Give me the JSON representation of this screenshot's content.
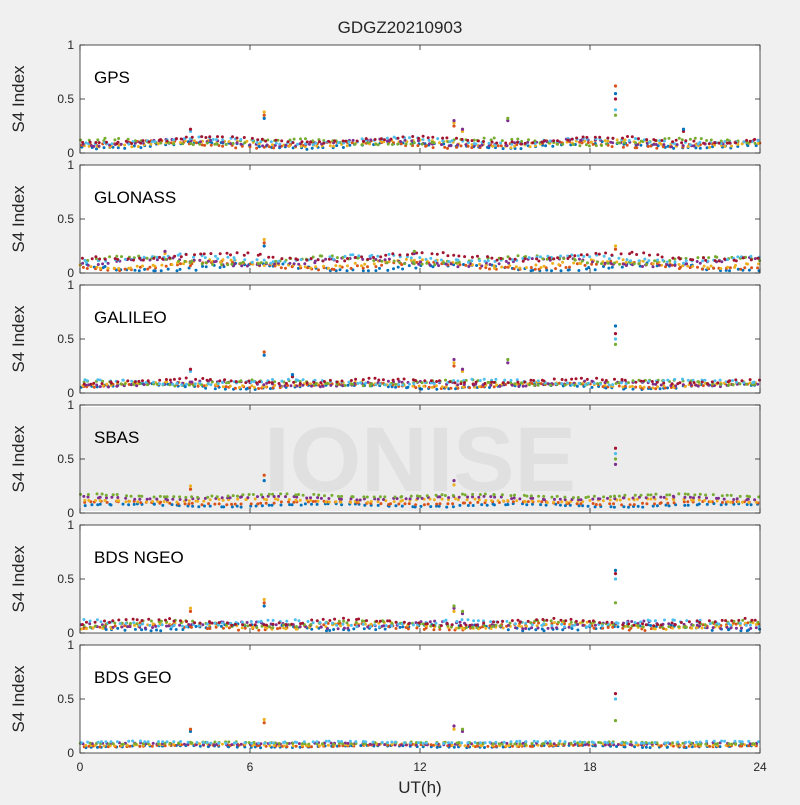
{
  "figure": {
    "title": "GDGZ20210903",
    "watermark": "IONISE",
    "xlabel": "UT(h)",
    "ylabel": "S4 Index",
    "xticks": [
      "0",
      "6",
      "12",
      "18",
      "24"
    ],
    "yticks": [
      "0",
      "0.5",
      "1"
    ]
  },
  "colors": {
    "background": "#f0f0f0",
    "axes_bg": "#ffffff",
    "series": [
      "#0072BD",
      "#D95319",
      "#EDB120",
      "#7E2F8E",
      "#77AC30",
      "#4DBEEE",
      "#A2142F"
    ]
  },
  "chart_data": [
    {
      "type": "scatter",
      "panel": "GPS",
      "xlim": [
        0,
        24
      ],
      "ylim": [
        0,
        1
      ],
      "grid": false,
      "baseline": [
        0.07,
        0.12
      ],
      "noise": 0.025,
      "rows": 7,
      "spikes": [
        {
          "x": 6.5,
          "y": [
            0.32,
            0.35,
            0.38
          ]
        },
        {
          "x": 13.2,
          "y": [
            0.25,
            0.28,
            0.3
          ]
        },
        {
          "x": 13.5,
          "y": [
            0.2,
            0.22
          ]
        },
        {
          "x": 15.1,
          "y": [
            0.3,
            0.32
          ]
        },
        {
          "x": 18.9,
          "y": [
            0.35,
            0.4,
            0.5,
            0.55,
            0.62
          ]
        },
        {
          "x": 3.9,
          "y": [
            0.2,
            0.22
          ]
        },
        {
          "x": 21.3,
          "y": [
            0.2,
            0.22
          ]
        }
      ]
    },
    {
      "type": "scatter",
      "panel": "GLONASS",
      "xlim": [
        0,
        24
      ],
      "ylim": [
        0,
        1
      ],
      "grid": false,
      "baseline": [
        0.05,
        0.15
      ],
      "noise": 0.03,
      "rows": 7,
      "spikes": [
        {
          "x": 6.5,
          "y": [
            0.25,
            0.28,
            0.31
          ]
        },
        {
          "x": 18.9,
          "y": [
            0.22,
            0.25
          ]
        },
        {
          "x": 3.0,
          "y": [
            0.18,
            0.2
          ]
        },
        {
          "x": 11.8,
          "y": [
            0.18,
            0.2
          ]
        }
      ]
    },
    {
      "type": "scatter",
      "panel": "GALILEO",
      "xlim": [
        0,
        24
      ],
      "ylim": [
        0,
        1
      ],
      "grid": false,
      "baseline": [
        0.06,
        0.11
      ],
      "noise": 0.02,
      "rows": 7,
      "spikes": [
        {
          "x": 6.5,
          "y": [
            0.35,
            0.38
          ]
        },
        {
          "x": 13.2,
          "y": [
            0.25,
            0.28,
            0.31
          ]
        },
        {
          "x": 13.5,
          "y": [
            0.2,
            0.22
          ]
        },
        {
          "x": 15.1,
          "y": [
            0.28,
            0.31
          ]
        },
        {
          "x": 18.9,
          "y": [
            0.45,
            0.5,
            0.55,
            0.62
          ]
        },
        {
          "x": 3.9,
          "y": [
            0.2,
            0.22
          ]
        },
        {
          "x": 7.5,
          "y": [
            0.15,
            0.17
          ]
        }
      ]
    },
    {
      "type": "scatter",
      "panel": "SBAS",
      "xlim": [
        0,
        24
      ],
      "ylim": [
        0,
        1
      ],
      "grid": false,
      "baseline": [
        0.07,
        0.16
      ],
      "noise": 0.012,
      "rows": 5,
      "spikes": [
        {
          "x": 6.5,
          "y": [
            0.3,
            0.35
          ]
        },
        {
          "x": 3.9,
          "y": [
            0.22,
            0.25
          ]
        },
        {
          "x": 13.2,
          "y": [
            0.26,
            0.3
          ]
        },
        {
          "x": 18.9,
          "y": [
            0.45,
            0.5,
            0.55,
            0.6
          ]
        }
      ]
    },
    {
      "type": "scatter",
      "panel": "BDS NGEO",
      "xlim": [
        0,
        24
      ],
      "ylim": [
        0,
        1
      ],
      "grid": false,
      "baseline": [
        0.05,
        0.1
      ],
      "noise": 0.025,
      "rows": 7,
      "spikes": [
        {
          "x": 6.5,
          "y": [
            0.25,
            0.28,
            0.31
          ]
        },
        {
          "x": 3.9,
          "y": [
            0.2,
            0.23
          ]
        },
        {
          "x": 13.2,
          "y": [
            0.2,
            0.23,
            0.25
          ]
        },
        {
          "x": 13.5,
          "y": [
            0.18,
            0.2
          ]
        },
        {
          "x": 18.9,
          "y": [
            0.28,
            0.5,
            0.55,
            0.58
          ]
        }
      ]
    },
    {
      "type": "scatter",
      "panel": "BDS GEO",
      "xlim": [
        0,
        24
      ],
      "ylim": [
        0,
        1
      ],
      "grid": false,
      "baseline": [
        0.06,
        0.1
      ],
      "noise": 0.008,
      "rows": 6,
      "spikes": [
        {
          "x": 3.9,
          "y": [
            0.2,
            0.22
          ]
        },
        {
          "x": 6.5,
          "y": [
            0.28,
            0.31
          ]
        },
        {
          "x": 13.2,
          "y": [
            0.22,
            0.25
          ]
        },
        {
          "x": 13.5,
          "y": [
            0.2,
            0.22
          ]
        },
        {
          "x": 18.9,
          "y": [
            0.3,
            0.5,
            0.55
          ]
        }
      ]
    }
  ]
}
